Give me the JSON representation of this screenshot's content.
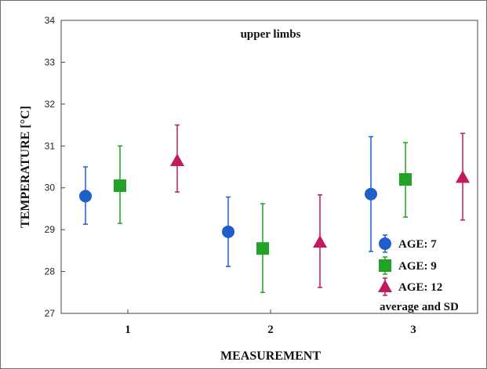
{
  "chart_data": {
    "type": "scatter",
    "title": "upper limbs",
    "xlabel": "MEASUREMENT",
    "ylabel": "TEMPERATURE [°C]",
    "categories": [
      "1",
      "2",
      "3"
    ],
    "ylim": [
      27,
      34
    ],
    "yticks": [
      "27",
      "28",
      "29",
      "30",
      "31",
      "32",
      "33",
      "34"
    ],
    "grid": false,
    "legend_position": "bottom-right",
    "legend_note": "average and SD",
    "series": [
      {
        "name": "AGE: 7",
        "marker": "circle",
        "color": "#1f5fc8",
        "mean": [
          29.8,
          28.95,
          29.85
        ],
        "low": [
          29.13,
          28.12,
          28.48
        ],
        "high": [
          30.5,
          29.78,
          31.22
        ]
      },
      {
        "name": "AGE: 9",
        "marker": "square",
        "color": "#23a326",
        "mean": [
          30.05,
          28.55,
          30.2
        ],
        "low": [
          29.15,
          27.5,
          29.3
        ],
        "high": [
          31.0,
          29.62,
          31.08
        ]
      },
      {
        "name": "AGE: 12",
        "marker": "triangle",
        "color": "#c21a5e",
        "mean": [
          30.65,
          28.7,
          30.25
        ],
        "low": [
          29.9,
          27.62,
          29.23
        ],
        "high": [
          31.5,
          29.83,
          31.3
        ]
      }
    ]
  }
}
